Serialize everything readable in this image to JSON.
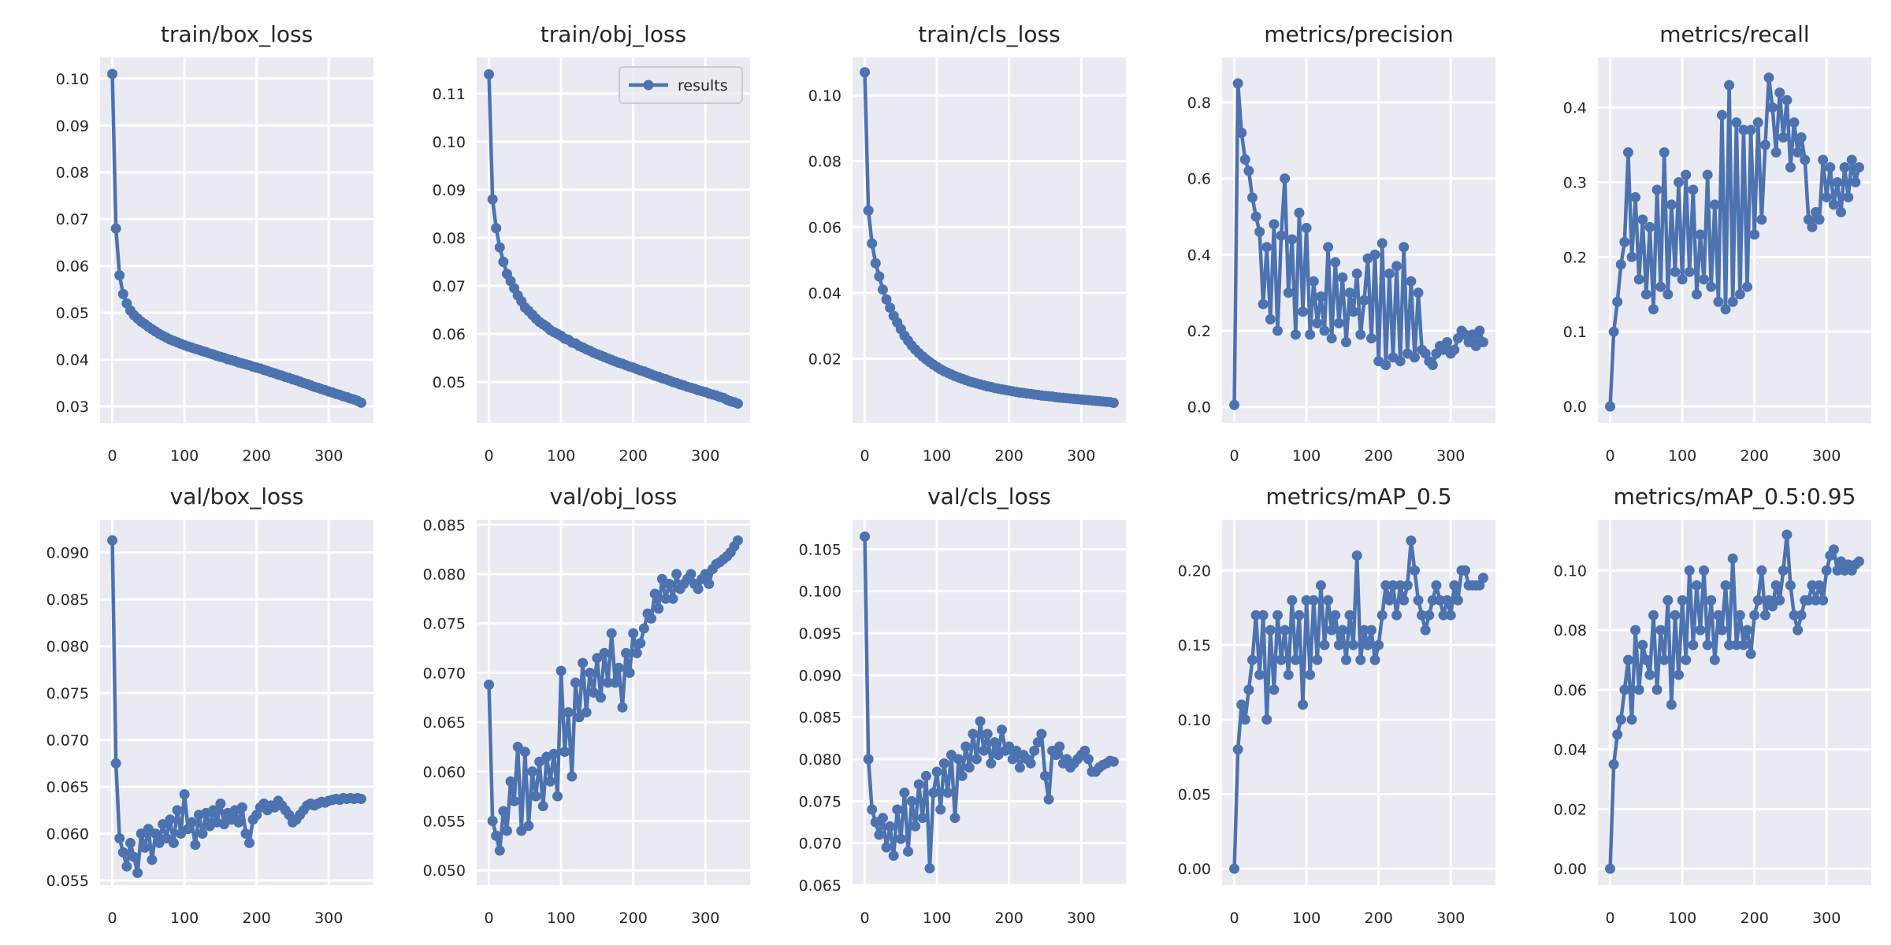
{
  "chart_data": [
    {
      "type": "line",
      "title": "train/box_loss",
      "xlabel": "",
      "ylabel": "",
      "xlim": [
        -17,
        362
      ],
      "ylim": [
        0.0265,
        0.1045
      ],
      "xticks": [
        "0",
        "100",
        "200",
        "300"
      ],
      "yticks": [
        "0.03",
        "0.04",
        "0.05",
        "0.06",
        "0.07",
        "0.08",
        "0.09",
        "0.10"
      ],
      "grid": true,
      "series": [
        {
          "name": "results",
          "values": [
            0.101,
            0.068,
            0.058,
            0.054,
            0.052,
            0.0505,
            0.0495,
            0.0488,
            0.0481,
            0.0476,
            0.047,
            0.0465,
            0.046,
            0.0455,
            0.0451,
            0.0447,
            0.0443,
            0.044,
            0.0437,
            0.0434,
            0.0431,
            0.0428,
            0.0426,
            0.0423,
            0.0421,
            0.0418,
            0.0416,
            0.0413,
            0.0411,
            0.0408,
            0.0406,
            0.0404,
            0.0401,
            0.0399,
            0.0397,
            0.0394,
            0.0392,
            0.039,
            0.0388,
            0.0385,
            0.0383,
            0.0381,
            0.0378,
            0.0376,
            0.0373,
            0.0371,
            0.0368,
            0.0366,
            0.0363,
            0.0361,
            0.0358,
            0.0356,
            0.0353,
            0.035,
            0.0348,
            0.0345,
            0.0342,
            0.034,
            0.0337,
            0.0335,
            0.0332,
            0.033,
            0.0327,
            0.0325,
            0.0322,
            0.032,
            0.0317,
            0.0315,
            0.0312,
            0.0308
          ]
        }
      ]
    },
    {
      "type": "line",
      "title": "train/obj_loss",
      "xlabel": "",
      "ylabel": "",
      "xlim": [
        -17,
        362
      ],
      "ylim": [
        0.0415,
        0.1175
      ],
      "xticks": [
        "0",
        "100",
        "200",
        "300"
      ],
      "yticks": [
        "0.05",
        "0.06",
        "0.07",
        "0.08",
        "0.09",
        "0.10",
        "0.11"
      ],
      "grid": true,
      "legend": {
        "label": "results",
        "placement": "top-right"
      },
      "series": [
        {
          "name": "results",
          "values": [
            0.114,
            0.088,
            0.082,
            0.078,
            0.075,
            0.0725,
            0.071,
            0.0695,
            0.068,
            0.0668,
            0.0655,
            0.0648,
            0.064,
            0.0632,
            0.0625,
            0.062,
            0.0615,
            0.0608,
            0.0604,
            0.06,
            0.0596,
            0.059,
            0.0588,
            0.0582,
            0.058,
            0.0575,
            0.0572,
            0.0568,
            0.0565,
            0.0561,
            0.0558,
            0.0555,
            0.0552,
            0.0549,
            0.0546,
            0.0543,
            0.054,
            0.0538,
            0.0535,
            0.0532,
            0.053,
            0.0527,
            0.0524,
            0.0522,
            0.0519,
            0.0516,
            0.0513,
            0.0511,
            0.0508,
            0.0506,
            0.0503,
            0.05,
            0.0498,
            0.0495,
            0.0493,
            0.049,
            0.0488,
            0.0486,
            0.0483,
            0.0481,
            0.0479,
            0.0476,
            0.0474,
            0.0472,
            0.0469,
            0.0467,
            0.0463,
            0.046,
            0.0458,
            0.0455
          ]
        }
      ]
    },
    {
      "type": "line",
      "title": "train/cls_loss",
      "xlabel": "",
      "ylabel": "",
      "xlim": [
        -17,
        362
      ],
      "ylim": [
        0.0005,
        0.1115
      ],
      "xticks": [
        "0",
        "100",
        "200",
        "300"
      ],
      "yticks": [
        "0.02",
        "0.04",
        "0.06",
        "0.08",
        "0.10"
      ],
      "grid": true,
      "series": [
        {
          "name": "results",
          "values": [
            0.107,
            0.065,
            0.055,
            0.049,
            0.045,
            0.041,
            0.038,
            0.0355,
            0.033,
            0.031,
            0.029,
            0.027,
            0.0255,
            0.024,
            0.0228,
            0.0217,
            0.0207,
            0.0198,
            0.019,
            0.0182,
            0.0175,
            0.0168,
            0.0162,
            0.0157,
            0.0152,
            0.0147,
            0.0143,
            0.0139,
            0.0135,
            0.0131,
            0.0128,
            0.0125,
            0.0122,
            0.0119,
            0.0116,
            0.0114,
            0.0111,
            0.0109,
            0.0107,
            0.0105,
            0.0103,
            0.0101,
            0.0099,
            0.0097,
            0.0096,
            0.0094,
            0.0093,
            0.0091,
            0.009,
            0.0088,
            0.0087,
            0.0086,
            0.0085,
            0.0083,
            0.0082,
            0.0081,
            0.008,
            0.0079,
            0.0078,
            0.0077,
            0.0076,
            0.0075,
            0.0074,
            0.0073,
            0.0072,
            0.0071,
            0.007,
            0.0069,
            0.0068,
            0.0066
          ]
        }
      ]
    },
    {
      "type": "line",
      "title": "metrics/precision",
      "xlabel": "",
      "ylabel": "",
      "xlim": [
        -17,
        362
      ],
      "ylim": [
        -0.042,
        0.918
      ],
      "xticks": [
        "0",
        "100",
        "200",
        "300"
      ],
      "yticks": [
        "0.0",
        "0.2",
        "0.4",
        "0.6",
        "0.8"
      ],
      "grid": true,
      "series": [
        {
          "name": "results",
          "values": [
            0.005,
            0.85,
            0.72,
            0.65,
            0.62,
            0.55,
            0.5,
            0.46,
            0.27,
            0.42,
            0.23,
            0.48,
            0.2,
            0.45,
            0.6,
            0.3,
            0.44,
            0.19,
            0.51,
            0.25,
            0.47,
            0.19,
            0.33,
            0.22,
            0.29,
            0.2,
            0.42,
            0.18,
            0.38,
            0.22,
            0.34,
            0.17,
            0.3,
            0.25,
            0.35,
            0.19,
            0.28,
            0.39,
            0.18,
            0.4,
            0.12,
            0.43,
            0.11,
            0.35,
            0.13,
            0.37,
            0.12,
            0.42,
            0.14,
            0.33,
            0.13,
            0.3,
            0.15,
            0.14,
            0.12,
            0.11,
            0.14,
            0.16,
            0.15,
            0.17,
            0.14,
            0.15,
            0.18,
            0.2,
            0.19,
            0.17,
            0.19,
            0.16,
            0.2,
            0.17
          ]
        }
      ]
    },
    {
      "type": "line",
      "title": "metrics/recall",
      "xlabel": "",
      "ylabel": "",
      "xlim": [
        -17,
        362
      ],
      "ylim": [
        -0.022,
        0.467
      ],
      "xticks": [
        "0",
        "100",
        "200",
        "300"
      ],
      "yticks": [
        "0.0",
        "0.1",
        "0.2",
        "0.3",
        "0.4"
      ],
      "grid": true,
      "series": [
        {
          "name": "results",
          "values": [
            0.0,
            0.1,
            0.14,
            0.19,
            0.22,
            0.34,
            0.2,
            0.28,
            0.17,
            0.25,
            0.15,
            0.24,
            0.13,
            0.29,
            0.16,
            0.34,
            0.15,
            0.27,
            0.18,
            0.3,
            0.17,
            0.31,
            0.18,
            0.29,
            0.15,
            0.23,
            0.17,
            0.31,
            0.16,
            0.27,
            0.14,
            0.39,
            0.13,
            0.43,
            0.14,
            0.38,
            0.15,
            0.37,
            0.16,
            0.37,
            0.23,
            0.38,
            0.25,
            0.35,
            0.44,
            0.4,
            0.34,
            0.42,
            0.36,
            0.41,
            0.32,
            0.38,
            0.34,
            0.36,
            0.33,
            0.25,
            0.24,
            0.26,
            0.25,
            0.33,
            0.28,
            0.32,
            0.27,
            0.3,
            0.26,
            0.32,
            0.28,
            0.33,
            0.3,
            0.32
          ]
        }
      ]
    },
    {
      "type": "line",
      "title": "val/box_loss",
      "xlabel": "",
      "ylabel": "",
      "xlim": [
        -17,
        362
      ],
      "ylim": [
        0.0545,
        0.0935
      ],
      "xticks": [
        "0",
        "100",
        "200",
        "300"
      ],
      "yticks": [
        "0.055",
        "0.060",
        "0.065",
        "0.070",
        "0.075",
        "0.080",
        "0.085",
        "0.090"
      ],
      "grid": true,
      "series": [
        {
          "name": "results",
          "values": [
            0.0913,
            0.0675,
            0.0595,
            0.058,
            0.0565,
            0.059,
            0.0575,
            0.0558,
            0.06,
            0.0585,
            0.0605,
            0.0572,
            0.06,
            0.059,
            0.061,
            0.0595,
            0.0615,
            0.059,
            0.0625,
            0.06,
            0.0642,
            0.0605,
            0.0612,
            0.0588,
            0.062,
            0.06,
            0.0622,
            0.0608,
            0.0625,
            0.0612,
            0.0632,
            0.061,
            0.0622,
            0.0615,
            0.0625,
            0.0612,
            0.0628,
            0.06,
            0.059,
            0.0615,
            0.062,
            0.0628,
            0.0632,
            0.0625,
            0.063,
            0.0628,
            0.0635,
            0.063,
            0.0625,
            0.062,
            0.0612,
            0.0615,
            0.062,
            0.0625,
            0.063,
            0.0632,
            0.063,
            0.0632,
            0.0634,
            0.0633,
            0.0635,
            0.0636,
            0.0637,
            0.0636,
            0.0638,
            0.0637,
            0.0638,
            0.0637,
            0.0638,
            0.0637
          ]
        }
      ]
    },
    {
      "type": "line",
      "title": "val/obj_loss",
      "xlabel": "",
      "ylabel": "",
      "xlim": [
        -17,
        362
      ],
      "ylim": [
        0.0485,
        0.0855
      ],
      "xticks": [
        "0",
        "100",
        "200",
        "300"
      ],
      "yticks": [
        "0.050",
        "0.055",
        "0.060",
        "0.065",
        "0.070",
        "0.075",
        "0.080",
        "0.085"
      ],
      "grid": true,
      "series": [
        {
          "name": "results",
          "values": [
            0.0688,
            0.055,
            0.0535,
            0.052,
            0.056,
            0.054,
            0.059,
            0.057,
            0.0625,
            0.054,
            0.062,
            0.0545,
            0.06,
            0.0575,
            0.061,
            0.0565,
            0.0615,
            0.059,
            0.0618,
            0.0575,
            0.0702,
            0.062,
            0.066,
            0.0595,
            0.069,
            0.0655,
            0.071,
            0.066,
            0.07,
            0.068,
            0.0715,
            0.0675,
            0.072,
            0.069,
            0.074,
            0.069,
            0.0705,
            0.0665,
            0.072,
            0.07,
            0.074,
            0.072,
            0.073,
            0.0745,
            0.076,
            0.0755,
            0.078,
            0.0765,
            0.0795,
            0.0775,
            0.079,
            0.0775,
            0.08,
            0.0785,
            0.079,
            0.0795,
            0.08,
            0.079,
            0.0785,
            0.0795,
            0.08,
            0.079,
            0.0805,
            0.081,
            0.0812,
            0.0815,
            0.0818,
            0.0822,
            0.0828,
            0.0834
          ]
        }
      ]
    },
    {
      "type": "line",
      "title": "val/cls_loss",
      "xlabel": "",
      "ylabel": "",
      "xlim": [
        -17,
        362
      ],
      "ylim": [
        0.065,
        0.1085
      ],
      "xticks": [
        "0",
        "100",
        "200",
        "300"
      ],
      "yticks": [
        "0.065",
        "0.070",
        "0.075",
        "0.080",
        "0.085",
        "0.090",
        "0.095",
        "0.100",
        "0.105"
      ],
      "grid": true,
      "series": [
        {
          "name": "results",
          "values": [
            0.1065,
            0.08,
            0.074,
            0.0725,
            0.071,
            0.073,
            0.0695,
            0.072,
            0.0685,
            0.074,
            0.0705,
            0.076,
            0.069,
            0.075,
            0.072,
            0.077,
            0.073,
            0.078,
            0.067,
            0.076,
            0.0785,
            0.074,
            0.0795,
            0.076,
            0.0805,
            0.073,
            0.08,
            0.078,
            0.0815,
            0.079,
            0.083,
            0.08,
            0.0845,
            0.081,
            0.083,
            0.0795,
            0.082,
            0.0805,
            0.0835,
            0.081,
            0.0815,
            0.08,
            0.081,
            0.079,
            0.0805,
            0.08,
            0.0795,
            0.081,
            0.082,
            0.083,
            0.078,
            0.0752,
            0.081,
            0.0805,
            0.0815,
            0.0795,
            0.08,
            0.079,
            0.0795,
            0.08,
            0.0805,
            0.081,
            0.08,
            0.0785,
            0.0785,
            0.079,
            0.0793,
            0.0795,
            0.0798,
            0.0797
          ]
        }
      ]
    },
    {
      "type": "line",
      "title": "metrics/mAP_0.5",
      "xlabel": "",
      "ylabel": "",
      "xlim": [
        -17,
        362
      ],
      "ylim": [
        -0.011,
        0.234
      ],
      "xticks": [
        "0",
        "100",
        "200",
        "300"
      ],
      "yticks": [
        "0.00",
        "0.05",
        "0.10",
        "0.15",
        "0.20"
      ],
      "grid": true,
      "series": [
        {
          "name": "results",
          "values": [
            0.0,
            0.08,
            0.11,
            0.1,
            0.12,
            0.14,
            0.17,
            0.13,
            0.17,
            0.1,
            0.16,
            0.12,
            0.17,
            0.14,
            0.16,
            0.13,
            0.18,
            0.14,
            0.17,
            0.11,
            0.18,
            0.13,
            0.18,
            0.14,
            0.19,
            0.15,
            0.18,
            0.16,
            0.17,
            0.15,
            0.16,
            0.14,
            0.17,
            0.15,
            0.21,
            0.14,
            0.16,
            0.15,
            0.16,
            0.14,
            0.15,
            0.17,
            0.19,
            0.18,
            0.19,
            0.17,
            0.19,
            0.18,
            0.19,
            0.22,
            0.2,
            0.18,
            0.17,
            0.16,
            0.17,
            0.18,
            0.19,
            0.18,
            0.17,
            0.18,
            0.17,
            0.19,
            0.18,
            0.2,
            0.2,
            0.19,
            0.19,
            0.19,
            0.19,
            0.195
          ]
        }
      ]
    },
    {
      "type": "line",
      "title": "metrics/mAP_0.5:0.95",
      "xlabel": "",
      "ylabel": "",
      "xlim": [
        -17,
        362
      ],
      "ylim": [
        -0.0055,
        0.117
      ],
      "xticks": [
        "0",
        "100",
        "200",
        "300"
      ],
      "yticks": [
        "0.00",
        "0.02",
        "0.04",
        "0.06",
        "0.08",
        "0.10"
      ],
      "grid": true,
      "series": [
        {
          "name": "results",
          "values": [
            0.0,
            0.035,
            0.045,
            0.05,
            0.06,
            0.07,
            0.05,
            0.08,
            0.06,
            0.075,
            0.07,
            0.065,
            0.085,
            0.06,
            0.08,
            0.07,
            0.09,
            0.055,
            0.085,
            0.065,
            0.09,
            0.07,
            0.1,
            0.075,
            0.095,
            0.08,
            0.1,
            0.075,
            0.09,
            0.07,
            0.085,
            0.08,
            0.095,
            0.075,
            0.104,
            0.075,
            0.085,
            0.075,
            0.08,
            0.072,
            0.085,
            0.09,
            0.1,
            0.085,
            0.09,
            0.088,
            0.095,
            0.09,
            0.1,
            0.112,
            0.095,
            0.085,
            0.08,
            0.085,
            0.09,
            0.09,
            0.095,
            0.09,
            0.095,
            0.09,
            0.1,
            0.105,
            0.107,
            0.1,
            0.103,
            0.1,
            0.102,
            0.1,
            0.102,
            0.103
          ]
        }
      ]
    }
  ],
  "x": [
    0,
    5,
    10,
    15,
    20,
    25,
    30,
    35,
    40,
    45,
    50,
    55,
    60,
    65,
    70,
    75,
    80,
    85,
    90,
    95,
    100,
    105,
    110,
    115,
    120,
    125,
    130,
    135,
    140,
    145,
    150,
    155,
    160,
    165,
    170,
    175,
    180,
    185,
    190,
    195,
    200,
    205,
    210,
    215,
    220,
    225,
    230,
    235,
    240,
    245,
    250,
    255,
    260,
    265,
    270,
    275,
    280,
    285,
    290,
    295,
    300,
    305,
    310,
    315,
    320,
    325,
    330,
    335,
    340,
    345
  ],
  "colors": {
    "line": "#4C72B0",
    "axes_bg": "#EAEAF2",
    "grid": "#FFFFFF",
    "text": "#262626"
  }
}
